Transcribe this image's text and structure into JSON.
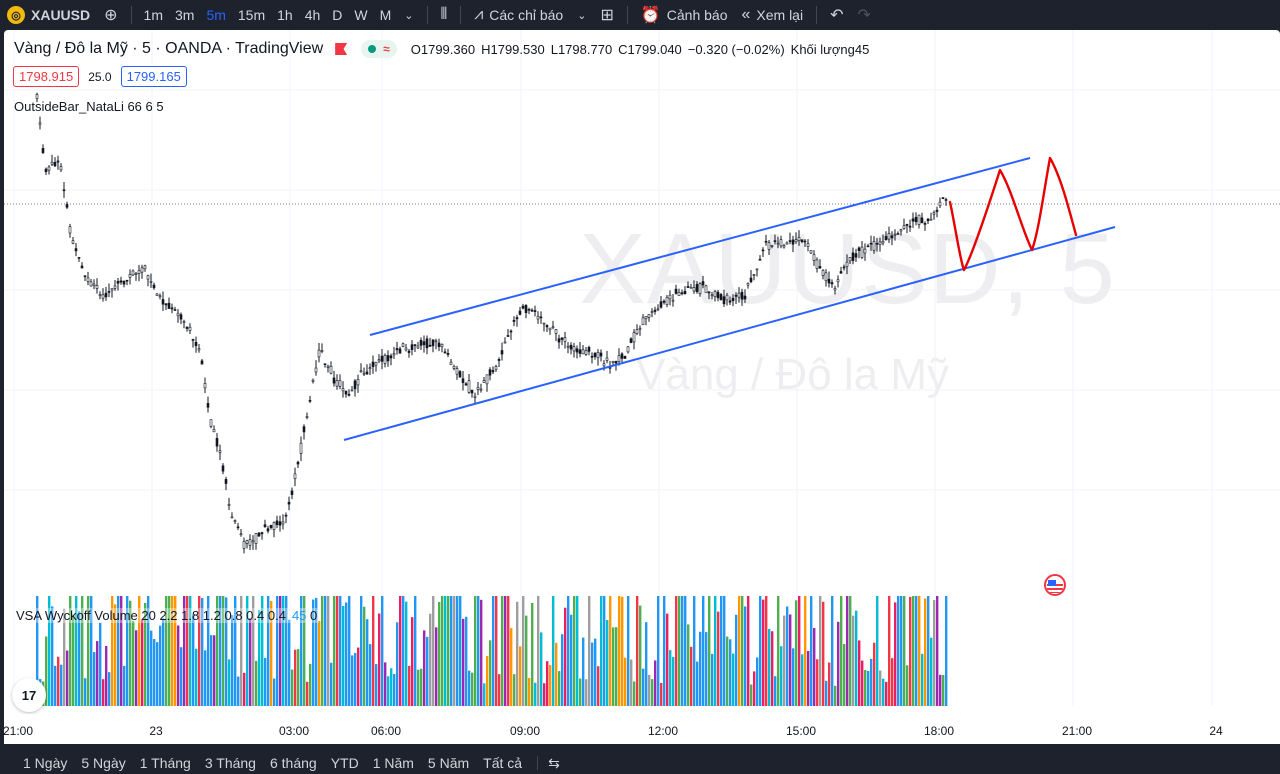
{
  "toolbar": {
    "symbol": "XAUUSD",
    "symbol_logo_glyph": "◎",
    "add_icon": "plus-circle-icon",
    "timeframes": [
      "1m",
      "3m",
      "5m",
      "15m",
      "1h",
      "4h",
      "D",
      "W",
      "M"
    ],
    "active_timeframe": "5m",
    "indicators_label": "Các chỉ báo",
    "alerts_label": "Cảnh báo",
    "replay_label": "Xem lại"
  },
  "legend": {
    "title": "Vàng / Đô la Mỹ · 5 · OANDA · TradingView",
    "ohlc": [
      {
        "k": "O",
        "v": "1799.360"
      },
      {
        "k": "H",
        "v": "1799.530"
      },
      {
        "k": "L",
        "v": "1798.770"
      },
      {
        "k": "C",
        "v": "1799.040"
      }
    ],
    "change": "−0.320 (−0.02%)",
    "volume_label": "Khối lượng",
    "volume_value": "45",
    "sell_price": "1798.915",
    "spread": "25.0",
    "buy_price": "1799.165",
    "indicator": "OutsideBar_NataLi 66 6 5",
    "vsa_label": "VSA Wyckoff Volume 20 2.2 1.8 1.2 0.8 0.4 0.4",
    "vsa_count": "45",
    "vsa_extra": "0"
  },
  "watermark": {
    "symbol": "XAUUSD, 5",
    "description": "Vàng / Đô la Mỹ"
  },
  "time_axis": [
    "21:00",
    "23",
    "03:00",
    "06:00",
    "09:00",
    "12:00",
    "15:00",
    "18:00",
    "21:00",
    "24"
  ],
  "ranges": [
    "1 Ngày",
    "5 Ngày",
    "1 Tháng",
    "3 Tháng",
    "6 tháng",
    "YTD",
    "1 Năm",
    "5 Năm",
    "Tất cả"
  ],
  "colors": {
    "up": "#131722",
    "down": "#131722",
    "channel": "#2962ff",
    "forecast": "#e60000",
    "vol_blue": "#2196f3",
    "vol_green": "#4caf50",
    "vol_orange": "#ff9800",
    "vol_red": "#f23645",
    "vol_pink": "#e91e63",
    "vol_purple": "#9c27b0",
    "vol_grey": "#9e9e9e",
    "vol_cyan": "#00bcd4"
  }
}
